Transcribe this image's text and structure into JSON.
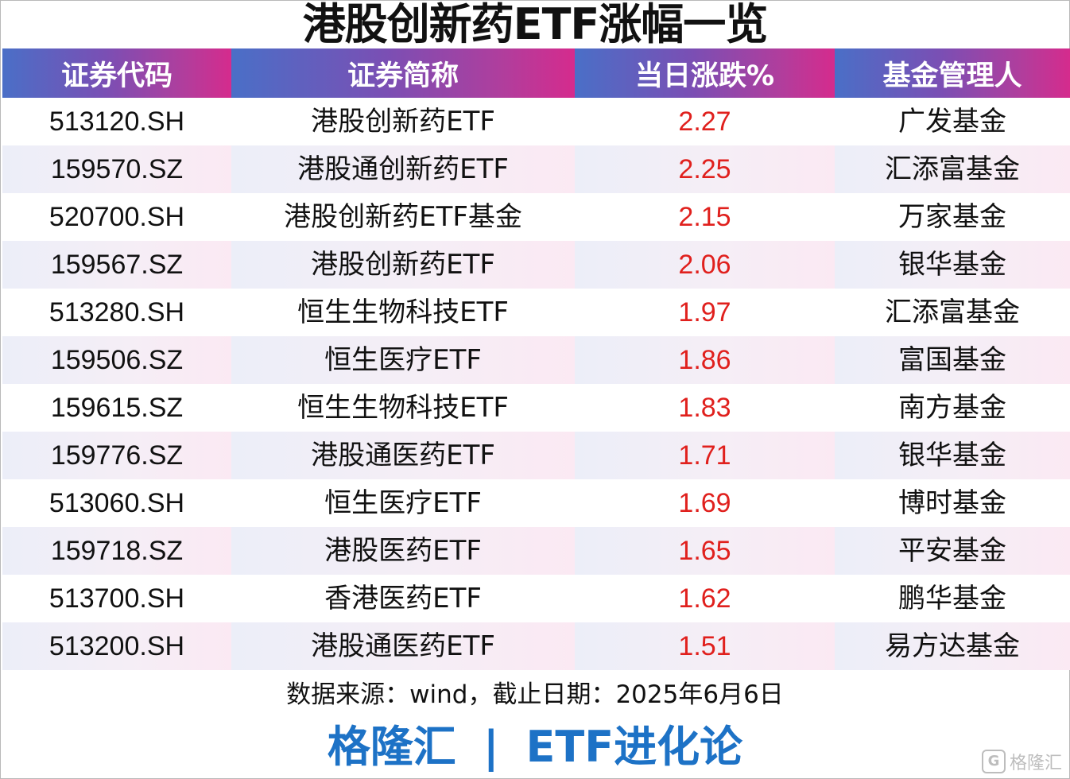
{
  "title": "港股创新药ETF涨幅一览",
  "headers": [
    "证券代码",
    "证券简称",
    "当日涨跌%",
    "基金管理人"
  ],
  "rows": [
    [
      "513120.SH",
      "港股创新药ETF",
      "2.27",
      "广发基金"
    ],
    [
      "159570.SZ",
      "港股通创新药ETF",
      "2.25",
      "汇添富基金"
    ],
    [
      "520700.SH",
      "港股创新药ETF基金",
      "2.15",
      "万家基金"
    ],
    [
      "159567.SZ",
      "港股创新药ETF",
      "2.06",
      "银华基金"
    ],
    [
      "513280.SH",
      "恒生生物科技ETF",
      "1.97",
      "汇添富基金"
    ],
    [
      "159506.SZ",
      "恒生医疗ETF",
      "1.86",
      "富国基金"
    ],
    [
      "159615.SZ",
      "恒生生物科技ETF",
      "1.83",
      "南方基金"
    ],
    [
      "159776.SZ",
      "港股通医药ETF",
      "1.71",
      "银华基金"
    ],
    [
      "513060.SH",
      "恒生医疗ETF",
      "1.69",
      "博时基金"
    ],
    [
      "159718.SZ",
      "港股医药ETF",
      "1.65",
      "平安基金"
    ],
    [
      "513700.SH",
      "香港医药ETF",
      "1.62",
      "鹏华基金"
    ],
    [
      "513200.SH",
      "港股通医药ETF",
      "1.51",
      "易方达基金"
    ]
  ],
  "source_note": "数据来源：wind，截止日期：2025年6月6日",
  "footer": {
    "brand": "格隆汇",
    "separator": "|",
    "column": "ETF进化论"
  },
  "watermark": {
    "icon": "gelonghui-logo-icon",
    "text": "格隆汇"
  },
  "colors": {
    "header_gradient_start": "#4a6fc7",
    "header_gradient_end": "#d52b8d",
    "positive_change": "#e0201d",
    "footer_brand": "#1d72c6",
    "stripe_row": "#f5eef6"
  }
}
